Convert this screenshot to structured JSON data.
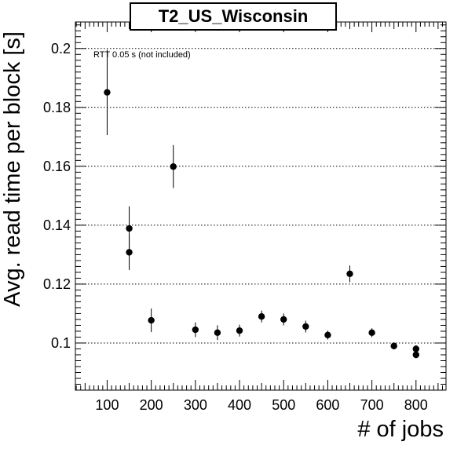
{
  "chart_data": {
    "type": "scatter",
    "title": "T2_US_Wisconsin",
    "xlabel": "# of jobs",
    "ylabel": "Avg. read time per block [s]",
    "annotation": "RTT 0.05 s (not included)",
    "xlim": [
      28,
      868
    ],
    "ylim": [
      0.084,
      0.209
    ],
    "x_ticks": [
      100,
      200,
      300,
      400,
      500,
      600,
      700,
      800
    ],
    "y_ticks": [
      0.1,
      0.12,
      0.14,
      0.16,
      0.18,
      0.2
    ],
    "x_tick_labels": [
      "100",
      "200",
      "300",
      "400",
      "500",
      "600",
      "700",
      "800"
    ],
    "y_tick_labels": [
      "0.1",
      "0.12",
      "0.14",
      "0.16",
      "0.18",
      "0.2"
    ],
    "grid": "horizontal dotted at y ticks",
    "marker_color": "#000000",
    "points": [
      {
        "x": 100,
        "y": 0.1851,
        "err": 0.0145
      },
      {
        "x": 150,
        "y": 0.1389,
        "err": 0.0075
      },
      {
        "x": 150,
        "y": 0.1308,
        "err": 0.006
      },
      {
        "x": 200,
        "y": 0.1077,
        "err": 0.004
      },
      {
        "x": 250,
        "y": 0.1599,
        "err": 0.0073
      },
      {
        "x": 300,
        "y": 0.1045,
        "err": 0.0025
      },
      {
        "x": 350,
        "y": 0.1035,
        "err": 0.0025
      },
      {
        "x": 400,
        "y": 0.1042,
        "err": 0.002
      },
      {
        "x": 450,
        "y": 0.109,
        "err": 0.002
      },
      {
        "x": 500,
        "y": 0.108,
        "err": 0.002
      },
      {
        "x": 550,
        "y": 0.1056,
        "err": 0.002
      },
      {
        "x": 600,
        "y": 0.1027,
        "err": 0.0015
      },
      {
        "x": 650,
        "y": 0.1235,
        "err": 0.0028
      },
      {
        "x": 700,
        "y": 0.1035,
        "err": 0.0015
      },
      {
        "x": 750,
        "y": 0.099,
        "err": 0.0012
      },
      {
        "x": 800,
        "y": 0.098,
        "err": 0.0012
      },
      {
        "x": 800,
        "y": 0.096,
        "err": 0.0012
      }
    ]
  }
}
